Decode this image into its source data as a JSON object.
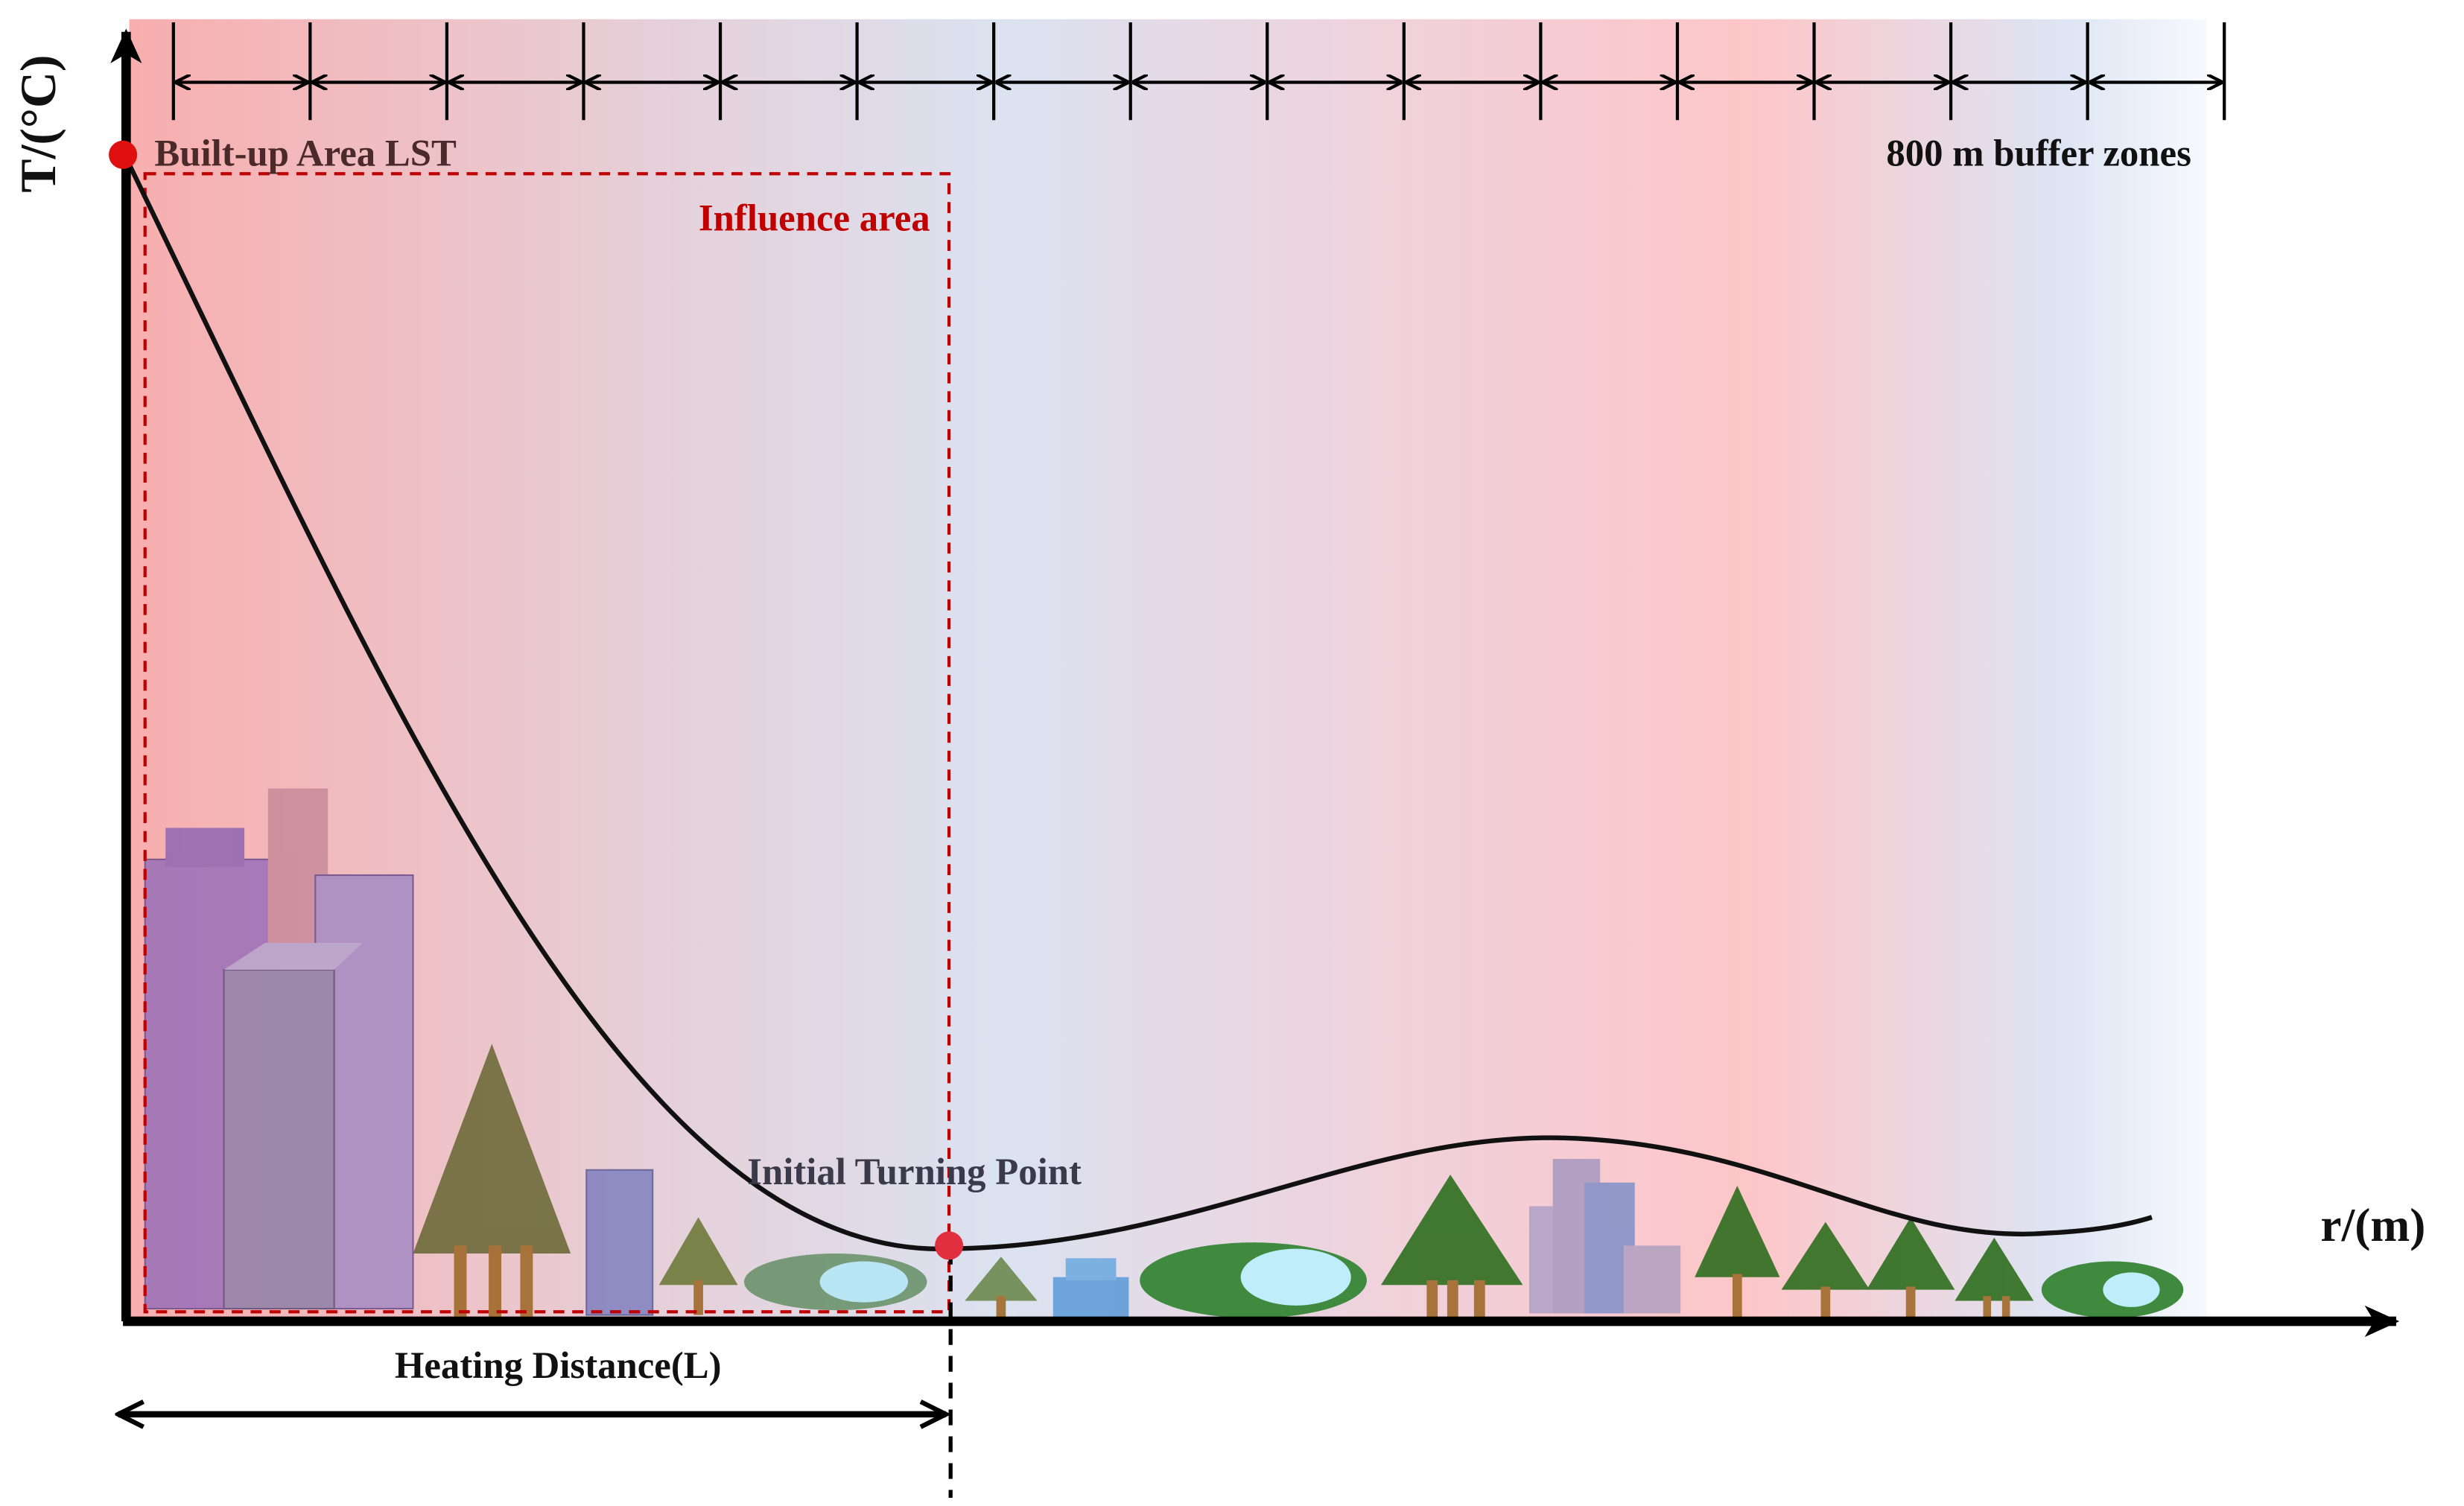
{
  "y_axis_label": "T/(°C)",
  "x_axis_label": "r/(m)",
  "start_point_label": "Built-up Area LST",
  "influence_label": "Influence area",
  "buffer_label": "800 m buffer zones",
  "turning_point_label": "Initial Turning Point",
  "distance_label": "Heating Distance(L)"
}
